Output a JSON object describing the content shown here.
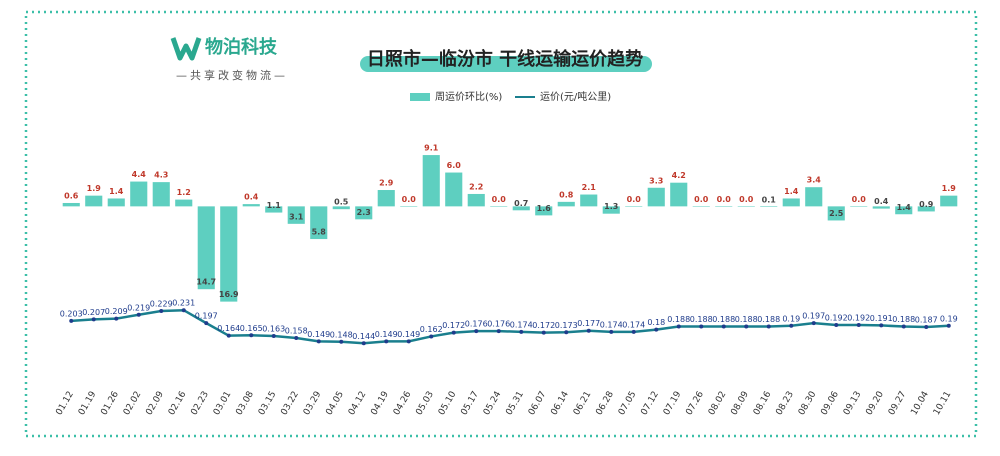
{
  "header": {
    "logo": "物泊科技",
    "tagline": "—共享改变物流—"
  },
  "chart_data": {
    "type": "bar",
    "title": "日照市—临汾市 干线运输运价趋势",
    "categories": [
      "01.12",
      "01.19",
      "01.26",
      "02.02",
      "02.09",
      "02.16",
      "02.23",
      "03.01",
      "03.08",
      "03.15",
      "03.22",
      "03.29",
      "04.05",
      "04.12",
      "04.19",
      "04.26",
      "05.03",
      "05.10",
      "05.17",
      "05.24",
      "05.31",
      "06.07",
      "06.14",
      "06.21",
      "06.28",
      "07.05",
      "07.12",
      "07.19",
      "07.26",
      "08.02",
      "08.09",
      "08.16",
      "08.23",
      "08.30",
      "09.06",
      "09.13",
      "09.20",
      "09.27",
      "10.04",
      "10.11"
    ],
    "series": [
      {
        "name": "周运价环比(%)",
        "type": "bar",
        "color": "#5ecfc0",
        "values": [
          0.6,
          1.9,
          1.4,
          4.4,
          4.3,
          1.2,
          -14.7,
          -16.9,
          0.4,
          -1.1,
          -3.1,
          -5.8,
          -0.5,
          -2.3,
          2.9,
          0.0,
          9.1,
          6.0,
          2.2,
          0.0,
          -0.7,
          -1.6,
          0.8,
          2.1,
          -1.3,
          0.0,
          3.3,
          4.2,
          0.0,
          0.0,
          0.0,
          -0.1,
          1.4,
          3.4,
          -2.5,
          0.0,
          -0.4,
          -1.4,
          -0.9,
          1.9
        ],
        "value_labels": [
          "0.6",
          "1.9",
          "1.4",
          "4.4",
          "4.3",
          "1.2",
          "14.7",
          "16.9",
          "0.4",
          "1.1",
          "3.1",
          "5.8",
          "0.5",
          "2.3",
          "2.9",
          "0.0",
          "9.1",
          "6.0",
          "2.2",
          "0.0",
          "0.7",
          "1.6",
          "0.8",
          "2.1",
          "1.3",
          "0.0",
          "3.3",
          "4.2",
          "0.0",
          "0.0",
          "0.0",
          "0.1",
          "1.4",
          "3.4",
          "2.5",
          "0.0",
          "0.4",
          "1.4",
          "0.9",
          "1.9"
        ]
      },
      {
        "name": "运价(元/吨公里)",
        "type": "line",
        "axis": "y2",
        "color": "#1a7f8e",
        "values": [
          0.203,
          0.207,
          0.209,
          0.219,
          0.229,
          0.231,
          0.197,
          0.164,
          0.165,
          0.163,
          0.158,
          0.149,
          0.148,
          0.144,
          0.149,
          0.149,
          0.162,
          0.172,
          0.176,
          0.176,
          0.174,
          0.172,
          0.173,
          0.177,
          0.174,
          0.174,
          0.18,
          0.188,
          0.188,
          0.188,
          0.188,
          0.188,
          0.19,
          0.197,
          0.192,
          0.192,
          0.191,
          0.188,
          0.187,
          0.19
        ]
      }
    ],
    "ylim": [
      -17.5,
      10
    ],
    "y2lim": [
      0.1,
      0.3
    ]
  }
}
